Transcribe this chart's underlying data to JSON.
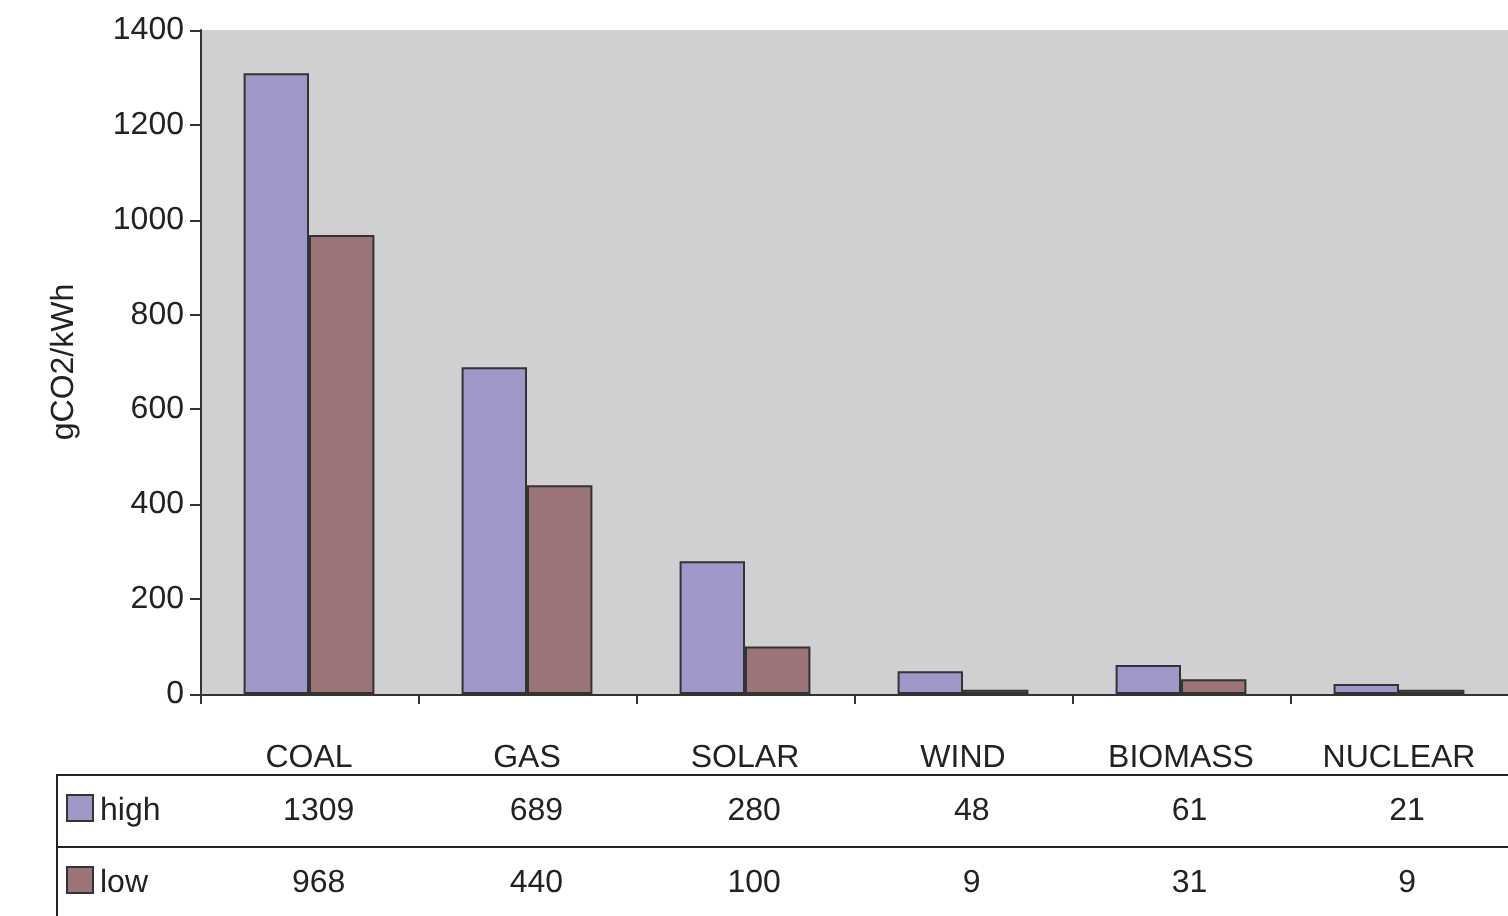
{
  "chart_data": {
    "type": "bar",
    "ylabel": "gCO2/kWh",
    "categories": [
      "COAL",
      "GAS",
      "SOLAR",
      "WIND",
      "BIOMASS",
      "NUCLEAR"
    ],
    "series": [
      {
        "name": "high",
        "color": "#9f97c8",
        "values": [
          1309,
          689,
          280,
          48,
          61,
          21
        ]
      },
      {
        "name": "low",
        "color": "#9a7477",
        "values": [
          968,
          440,
          100,
          9,
          31,
          9
        ]
      }
    ],
    "ylim": [
      0,
      1400
    ],
    "yticks": [
      0,
      200,
      400,
      600,
      800,
      1000,
      1200,
      1400
    ],
    "grid": false,
    "legend": "bottom",
    "data_labels": true
  }
}
